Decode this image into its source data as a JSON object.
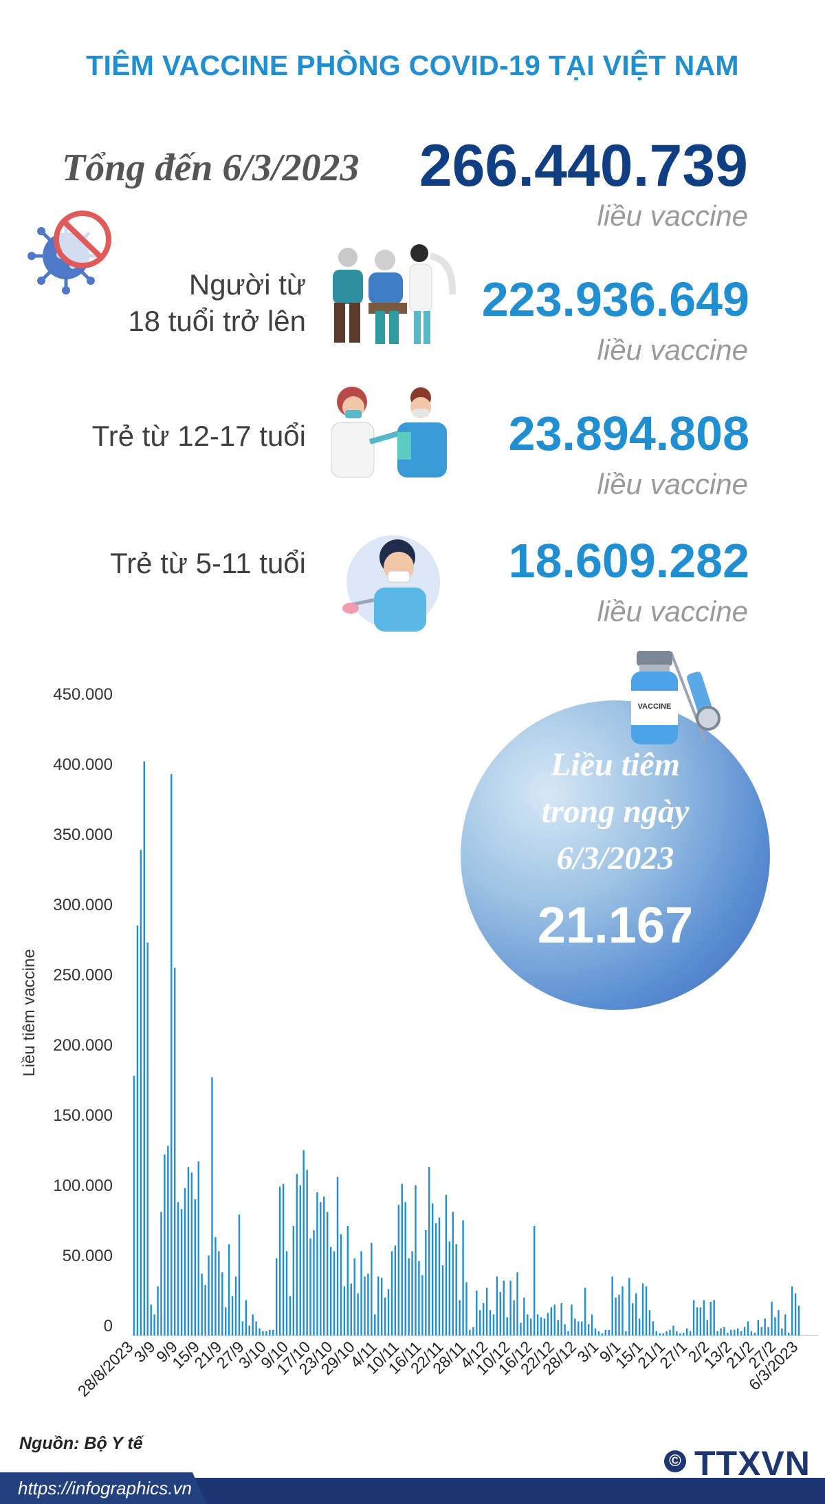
{
  "title": "TIÊM VACCINE PHÒNG COVID-19 TẠI VIỆT NAM",
  "total": {
    "label": "Tổng đến 6/3/2023",
    "value": "266.440.739",
    "unit": "liều vaccine"
  },
  "groups": [
    {
      "label_lines": [
        "Người từ",
        "18 tuổi trở lên"
      ],
      "value": "223.936.649",
      "unit": "liều vaccine"
    },
    {
      "label_lines": [
        "Trẻ từ 12-17 tuổi"
      ],
      "value": "23.894.808",
      "unit": "liều vaccine"
    },
    {
      "label_lines": [
        "Trẻ từ 5-11 tuổi"
      ],
      "value": "18.609.282",
      "unit": "liều vaccine"
    }
  ],
  "bubble": {
    "caption_lines": [
      "Liều tiêm",
      "trong ngày",
      "6/3/2023"
    ],
    "value": "21.167",
    "vial_label": "VACCINE"
  },
  "source": "Nguồn: Bộ Y tế",
  "footer": {
    "url": "https://infographics.vn",
    "logo": "TTXVN",
    "copyright_symbol": "©"
  },
  "colors": {
    "title": "#1f8fd2",
    "total_value": "#0f3f82",
    "bar": "#1f8fd2",
    "footer": "#1d3570"
  },
  "icons": [
    "virus-prohibited-icon",
    "elderly-vaccination-icon",
    "teen-vaccination-icon",
    "child-vaccination-icon",
    "vaccine-vial-icon",
    "syringe-icon"
  ],
  "chart_data": {
    "type": "bar",
    "ylabel": "Liều tiêm vaccine",
    "ylim": [
      0,
      450000
    ],
    "yticks": [
      0,
      50000,
      100000,
      150000,
      200000,
      250000,
      300000,
      350000,
      400000,
      450000
    ],
    "ytick_labels": [
      "0",
      "50.000",
      "100.000",
      "150.000",
      "200.000",
      "250.000",
      "300.000",
      "350.000",
      "400.000",
      "450.000"
    ],
    "xtick_labels": [
      "28/8/2023",
      "3/9",
      "9/9",
      "15/9",
      "21/9",
      "27/9",
      "3/10",
      "9/10",
      "17/10",
      "23/10",
      "29/10",
      "4/11",
      "10/11",
      "16/11",
      "22/11",
      "28/11",
      "4/12",
      "10/12",
      "16/12",
      "22/12",
      "28/12",
      "3/1",
      "9/1",
      "15/1",
      "21/1",
      "27/1",
      "2/2",
      "13/2",
      "21/2",
      "27/2",
      "6/3/2023"
    ],
    "values": [
      185000,
      292000,
      346000,
      409000,
      280000,
      22000,
      15000,
      35000,
      88000,
      129000,
      135000,
      400000,
      262000,
      95000,
      90000,
      105000,
      120000,
      116000,
      97000,
      124000,
      44000,
      36000,
      57000,
      184000,
      70000,
      60000,
      45000,
      20000,
      65000,
      28000,
      42000,
      86000,
      10000,
      25000,
      7000,
      15000,
      10000,
      5000,
      3000,
      3000,
      4000,
      4000,
      55000,
      106000,
      108000,
      60000,
      28000,
      78000,
      115000,
      107000,
      132000,
      118000,
      69000,
      75000,
      102000,
      95000,
      99000,
      88000,
      63000,
      60000,
      113000,
      72000,
      35000,
      78000,
      37000,
      55000,
      30000,
      60000,
      42000,
      44000,
      66000,
      15000,
      42000,
      41000,
      27000,
      33000,
      60000,
      64000,
      93000,
      108000,
      95000,
      55000,
      60000,
      107000,
      53000,
      43000,
      75000,
      120000,
      94000,
      80000,
      84000,
      50000,
      100000,
      67000,
      88000,
      65000,
      25000,
      82000,
      38000,
      4000,
      6000,
      32000,
      18000,
      23000,
      34000,
      18000,
      15000,
      42000,
      31000,
      39000,
      13000,
      39000,
      25000,
      45000,
      9000,
      27000,
      15000,
      12000,
      78000,
      15000,
      13000,
      12000,
      16000,
      20000,
      22000,
      11000,
      23000,
      8000,
      3000,
      22000,
      12000,
      10000,
      10000,
      34000,
      8000,
      15000,
      5000,
      3000,
      1500,
      4000,
      4000,
      42000,
      27000,
      29000,
      35000,
      3000,
      41000,
      23000,
      30000,
      12000,
      37000,
      35000,
      18000,
      10000,
      3000,
      1500,
      1500,
      3000,
      4000,
      7000,
      3000,
      1500,
      2000,
      5000,
      3000,
      25000,
      20000,
      20000,
      25000,
      11000,
      24000,
      25000,
      3000,
      5000,
      6000,
      2000,
      4000,
      4000,
      5000,
      3000,
      6000,
      10000,
      3000,
      2000,
      11000,
      6000,
      12000,
      6000,
      24000,
      13000,
      18000,
      5000,
      15000,
      2000,
      35000,
      30000,
      21167
    ]
  }
}
